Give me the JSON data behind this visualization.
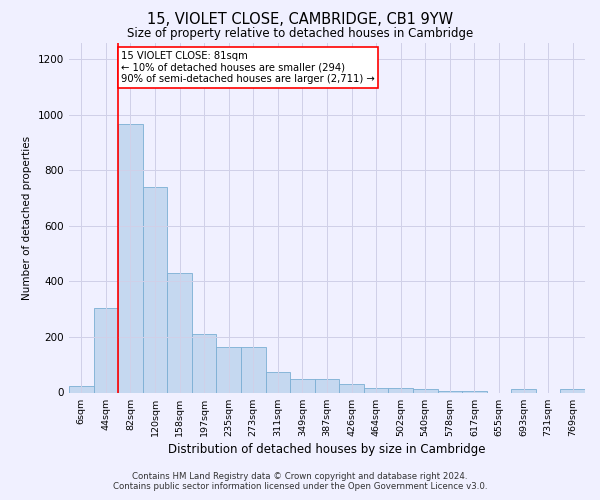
{
  "title": "15, VIOLET CLOSE, CAMBRIDGE, CB1 9YW",
  "subtitle": "Size of property relative to detached houses in Cambridge",
  "xlabel": "Distribution of detached houses by size in Cambridge",
  "ylabel": "Number of detached properties",
  "bar_color": "#c5d8f0",
  "bar_edge_color": "#7bafd4",
  "categories": [
    "6sqm",
    "44sqm",
    "82sqm",
    "120sqm",
    "158sqm",
    "197sqm",
    "235sqm",
    "273sqm",
    "311sqm",
    "349sqm",
    "387sqm",
    "426sqm",
    "464sqm",
    "502sqm",
    "540sqm",
    "578sqm",
    "617sqm",
    "655sqm",
    "693sqm",
    "731sqm",
    "769sqm"
  ],
  "values": [
    25,
    305,
    965,
    740,
    430,
    210,
    165,
    165,
    75,
    48,
    48,
    30,
    18,
    18,
    14,
    5,
    5,
    0,
    14,
    0,
    14
  ],
  "ylim": [
    0,
    1260
  ],
  "yticks": [
    0,
    200,
    400,
    600,
    800,
    1000,
    1200
  ],
  "red_line_x": 1.5,
  "annotation_text": "15 VIOLET CLOSE: 81sqm\n← 10% of detached houses are smaller (294)\n90% of semi-detached houses are larger (2,711) →",
  "footer_line1": "Contains HM Land Registry data © Crown copyright and database right 2024.",
  "footer_line2": "Contains public sector information licensed under the Open Government Licence v3.0.",
  "background_color": "#f0f0ff",
  "grid_color": "#d0d0e8"
}
